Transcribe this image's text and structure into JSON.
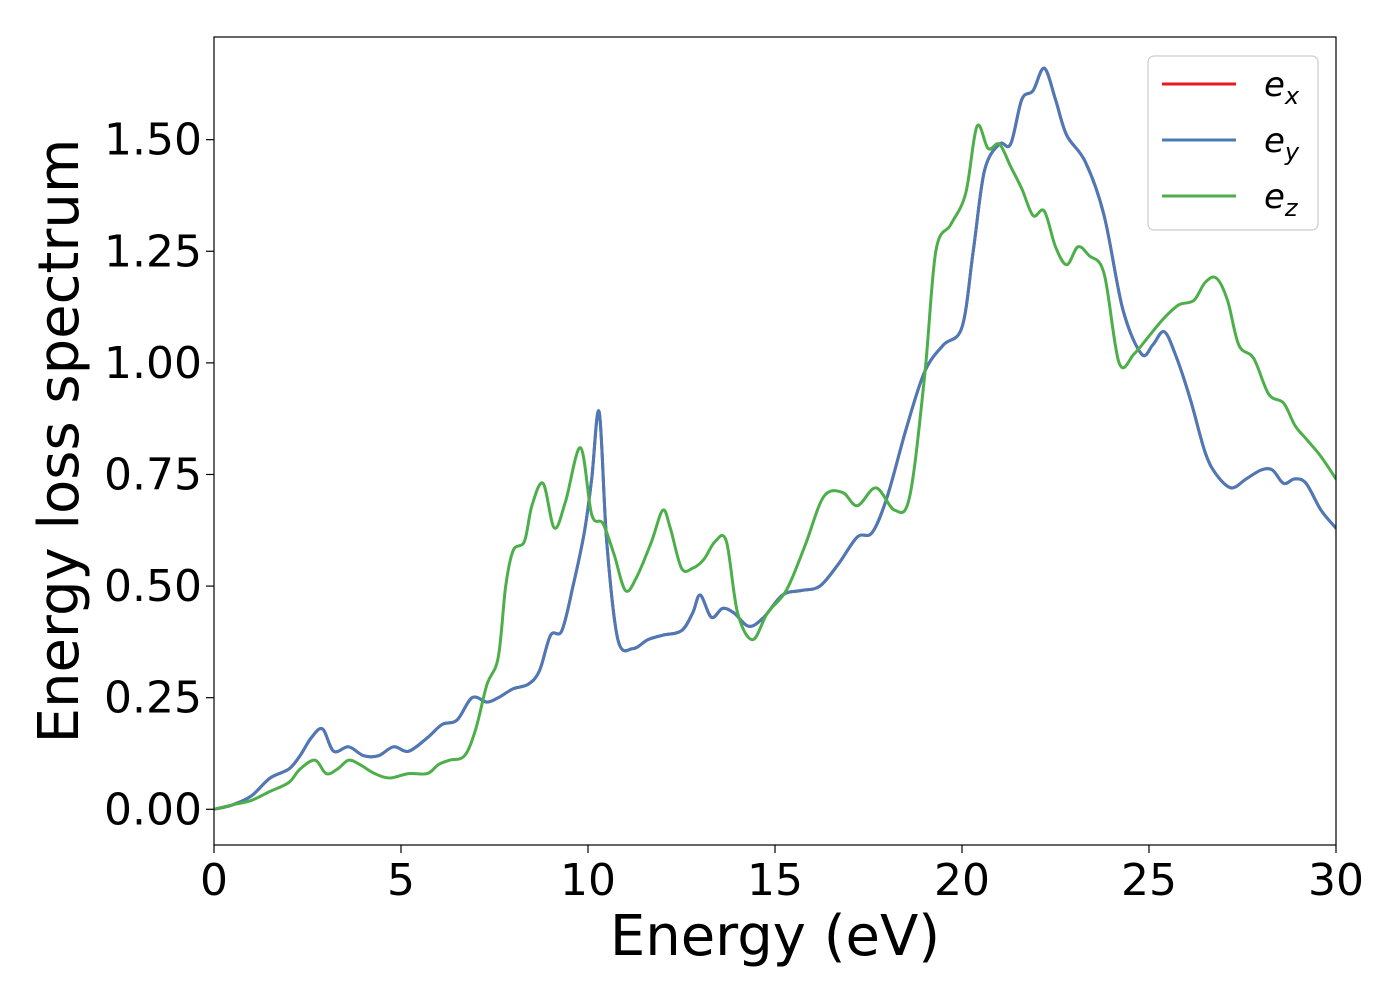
{
  "chart_data": {
    "type": "line",
    "xlabel": "Energy (eV)",
    "ylabel": "Energy loss spectrum",
    "xlim": [
      0,
      30
    ],
    "ylim": [
      -0.08,
      1.73
    ],
    "xticks": [
      0,
      5,
      10,
      15,
      20,
      25,
      30
    ],
    "xtick_labels": [
      "0",
      "5",
      "10",
      "15",
      "20",
      "25",
      "30"
    ],
    "yticks": [
      0.0,
      0.25,
      0.5,
      0.75,
      1.0,
      1.25,
      1.5
    ],
    "ytick_labels": [
      "0.00",
      "0.25",
      "0.50",
      "0.75",
      "1.00",
      "1.25",
      "1.50"
    ],
    "grid": false,
    "legend_position": "top-right",
    "series": [
      {
        "name": "e",
        "subscript": "x",
        "color": "#e41a1c",
        "x": [
          0,
          0.5,
          1.0,
          1.5,
          2.0,
          2.3,
          2.6,
          2.9,
          3.2,
          3.6,
          4.0,
          4.4,
          4.8,
          5.2,
          5.7,
          6.1,
          6.5,
          6.9,
          7.3,
          7.6,
          8.0,
          8.4,
          8.7,
          9.0,
          9.3,
          9.6,
          9.9,
          10.1,
          10.3,
          10.5,
          10.8,
          11.2,
          11.6,
          12.0,
          12.5,
          12.8,
          13.0,
          13.3,
          13.6,
          13.9,
          14.3,
          14.7,
          15.2,
          15.7,
          16.2,
          16.7,
          17.2,
          17.6,
          18.0,
          18.5,
          19.0,
          19.5,
          20.0,
          20.3,
          20.6,
          21.0,
          21.3,
          21.6,
          21.9,
          22.2,
          22.5,
          22.8,
          23.3,
          23.8,
          24.3,
          24.8,
          25.1,
          25.4,
          25.7,
          26.1,
          26.5,
          26.8,
          27.2,
          27.6,
          28.0,
          28.3,
          28.6,
          28.9,
          29.2,
          29.6,
          30.0
        ],
        "y": [
          0.0,
          0.01,
          0.03,
          0.07,
          0.09,
          0.12,
          0.16,
          0.18,
          0.13,
          0.14,
          0.12,
          0.12,
          0.14,
          0.13,
          0.16,
          0.19,
          0.2,
          0.25,
          0.24,
          0.25,
          0.27,
          0.28,
          0.31,
          0.39,
          0.4,
          0.5,
          0.62,
          0.74,
          0.89,
          0.6,
          0.38,
          0.36,
          0.38,
          0.39,
          0.4,
          0.44,
          0.48,
          0.43,
          0.45,
          0.44,
          0.41,
          0.43,
          0.48,
          0.49,
          0.5,
          0.55,
          0.61,
          0.62,
          0.7,
          0.85,
          0.98,
          1.04,
          1.08,
          1.25,
          1.43,
          1.49,
          1.49,
          1.59,
          1.61,
          1.66,
          1.59,
          1.51,
          1.45,
          1.33,
          1.12,
          1.02,
          1.04,
          1.07,
          1.02,
          0.92,
          0.8,
          0.75,
          0.72,
          0.74,
          0.76,
          0.76,
          0.73,
          0.74,
          0.73,
          0.67,
          0.63
        ]
      },
      {
        "name": "e",
        "subscript": "y",
        "color": "#4a7ab8",
        "x": [
          0,
          0.5,
          1.0,
          1.5,
          2.0,
          2.3,
          2.6,
          2.9,
          3.2,
          3.6,
          4.0,
          4.4,
          4.8,
          5.2,
          5.7,
          6.1,
          6.5,
          6.9,
          7.3,
          7.6,
          8.0,
          8.4,
          8.7,
          9.0,
          9.3,
          9.6,
          9.9,
          10.1,
          10.3,
          10.5,
          10.8,
          11.2,
          11.6,
          12.0,
          12.5,
          12.8,
          13.0,
          13.3,
          13.6,
          13.9,
          14.3,
          14.7,
          15.2,
          15.7,
          16.2,
          16.7,
          17.2,
          17.6,
          18.0,
          18.5,
          19.0,
          19.5,
          20.0,
          20.3,
          20.6,
          21.0,
          21.3,
          21.6,
          21.9,
          22.2,
          22.5,
          22.8,
          23.3,
          23.8,
          24.3,
          24.8,
          25.1,
          25.4,
          25.7,
          26.1,
          26.5,
          26.8,
          27.2,
          27.6,
          28.0,
          28.3,
          28.6,
          28.9,
          29.2,
          29.6,
          30.0
        ],
        "y": [
          0.0,
          0.01,
          0.03,
          0.07,
          0.09,
          0.12,
          0.16,
          0.18,
          0.13,
          0.14,
          0.12,
          0.12,
          0.14,
          0.13,
          0.16,
          0.19,
          0.2,
          0.25,
          0.24,
          0.25,
          0.27,
          0.28,
          0.31,
          0.39,
          0.4,
          0.5,
          0.62,
          0.74,
          0.89,
          0.6,
          0.38,
          0.36,
          0.38,
          0.39,
          0.4,
          0.44,
          0.48,
          0.43,
          0.45,
          0.44,
          0.41,
          0.43,
          0.48,
          0.49,
          0.5,
          0.55,
          0.61,
          0.62,
          0.7,
          0.85,
          0.98,
          1.04,
          1.08,
          1.25,
          1.43,
          1.49,
          1.49,
          1.59,
          1.61,
          1.66,
          1.59,
          1.51,
          1.45,
          1.33,
          1.12,
          1.02,
          1.04,
          1.07,
          1.02,
          0.92,
          0.8,
          0.75,
          0.72,
          0.74,
          0.76,
          0.76,
          0.73,
          0.74,
          0.73,
          0.67,
          0.63
        ]
      },
      {
        "name": "e",
        "subscript": "z",
        "color": "#4daf4a",
        "x": [
          0,
          0.5,
          1.0,
          1.5,
          2.0,
          2.3,
          2.7,
          3.0,
          3.3,
          3.6,
          3.9,
          4.3,
          4.7,
          5.2,
          5.7,
          6.0,
          6.3,
          6.7,
          7.0,
          7.3,
          7.6,
          7.8,
          8.0,
          8.3,
          8.5,
          8.8,
          9.1,
          9.4,
          9.8,
          10.1,
          10.4,
          10.7,
          11.0,
          11.3,
          11.7,
          12.0,
          12.2,
          12.5,
          12.8,
          13.1,
          13.4,
          13.7,
          14.0,
          14.4,
          14.8,
          15.3,
          15.8,
          16.3,
          16.8,
          17.2,
          17.7,
          18.2,
          18.6,
          19.0,
          19.3,
          19.7,
          20.1,
          20.4,
          20.7,
          21.0,
          21.3,
          21.6,
          21.9,
          22.2,
          22.5,
          22.8,
          23.1,
          23.4,
          23.8,
          24.2,
          24.6,
          25.0,
          25.4,
          25.8,
          26.2,
          26.5,
          26.8,
          27.1,
          27.4,
          27.8,
          28.2,
          28.6,
          28.9,
          29.2,
          29.6,
          30.0
        ],
        "y": [
          0.0,
          0.01,
          0.02,
          0.04,
          0.06,
          0.09,
          0.11,
          0.08,
          0.09,
          0.11,
          0.1,
          0.08,
          0.07,
          0.08,
          0.08,
          0.1,
          0.11,
          0.12,
          0.18,
          0.28,
          0.34,
          0.5,
          0.58,
          0.6,
          0.68,
          0.73,
          0.63,
          0.69,
          0.81,
          0.66,
          0.64,
          0.57,
          0.49,
          0.52,
          0.6,
          0.67,
          0.63,
          0.54,
          0.54,
          0.56,
          0.6,
          0.6,
          0.44,
          0.38,
          0.44,
          0.49,
          0.59,
          0.7,
          0.71,
          0.68,
          0.72,
          0.67,
          0.7,
          0.97,
          1.25,
          1.31,
          1.38,
          1.53,
          1.48,
          1.49,
          1.44,
          1.39,
          1.33,
          1.34,
          1.26,
          1.22,
          1.26,
          1.24,
          1.2,
          1.0,
          1.02,
          1.06,
          1.1,
          1.13,
          1.14,
          1.18,
          1.19,
          1.14,
          1.04,
          1.01,
          0.93,
          0.91,
          0.86,
          0.83,
          0.79,
          0.74
        ]
      }
    ]
  }
}
